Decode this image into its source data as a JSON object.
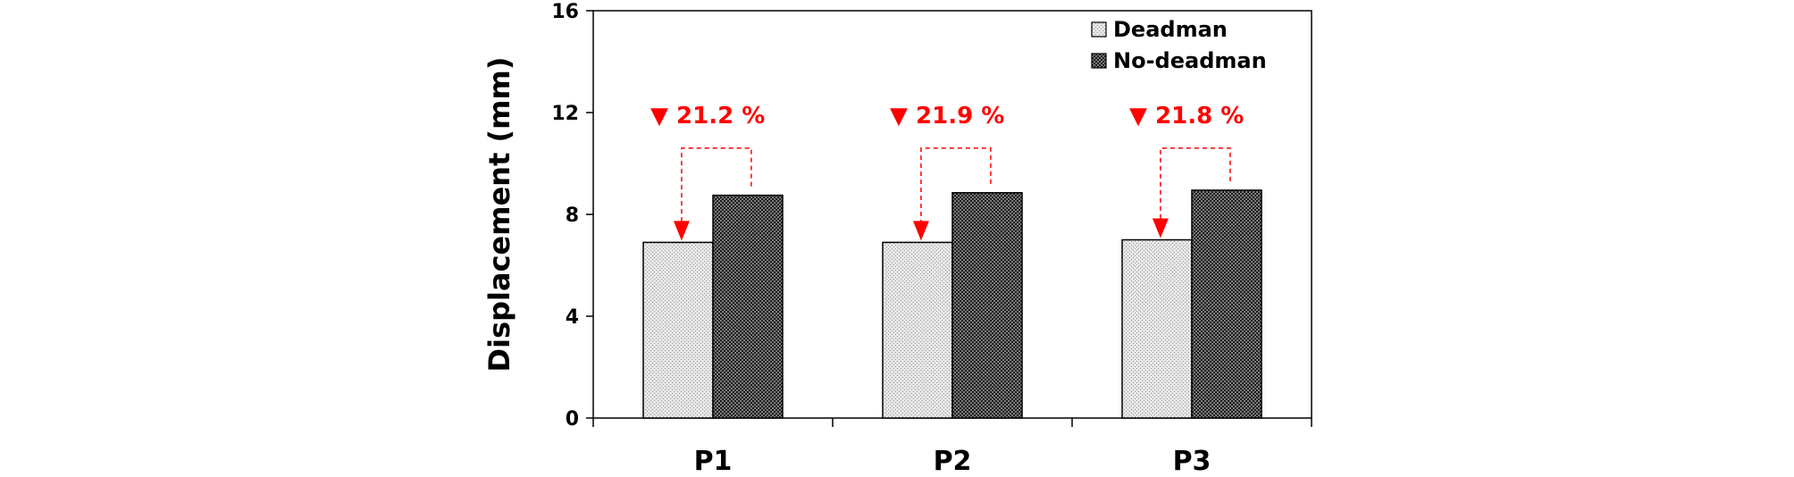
{
  "chart_data": {
    "type": "bar",
    "title": "",
    "xlabel": "",
    "ylabel": "Displacement (mm)",
    "categories": [
      "P1",
      "P2",
      "P3"
    ],
    "series": [
      {
        "name": "Deadman",
        "values": [
          6.9,
          6.9,
          7.0
        ]
      },
      {
        "name": "No-deadman",
        "values": [
          8.75,
          8.85,
          8.95
        ]
      }
    ],
    "ylim": [
      0,
      16
    ],
    "yticks": [
      0,
      4,
      8,
      12,
      16
    ],
    "grid": false,
    "legend_position": "top-right",
    "annotations": [
      {
        "category": "P1",
        "text": "▼ 21.2 %"
      },
      {
        "category": "P2",
        "text": "▼ 21.9 %"
      },
      {
        "category": "P3",
        "text": "▼ 21.8 %"
      }
    ],
    "colors": {
      "deadman_fill": "#e6e6e6",
      "nodeadman_fill": "#2a2a2a",
      "annotation": "#ff0000",
      "axis": "#000000"
    }
  }
}
